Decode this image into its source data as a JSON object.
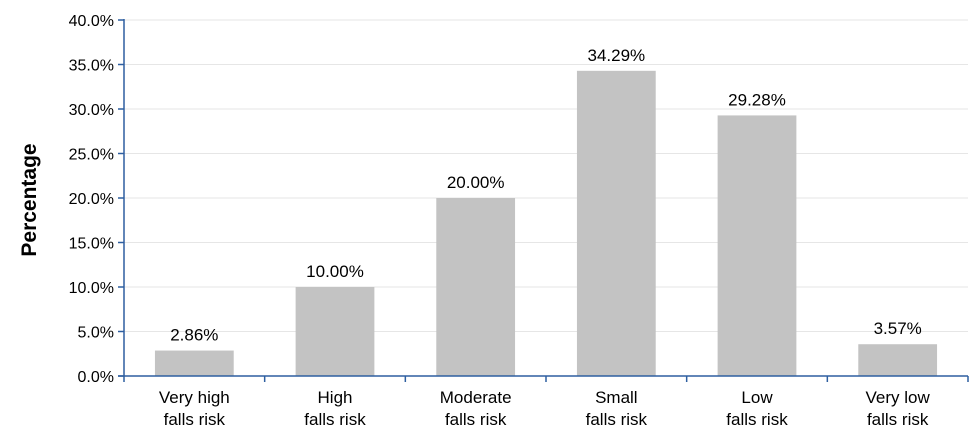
{
  "chart_data": {
    "type": "bar",
    "title": "",
    "xlabel": "",
    "ylabel": "Percentage",
    "categories": [
      [
        "Very high",
        "falls risk"
      ],
      [
        "High",
        "falls risk"
      ],
      [
        "Moderate",
        "falls risk"
      ],
      [
        "Small",
        "falls risk"
      ],
      [
        "Low",
        "falls risk"
      ],
      [
        "Very low",
        "falls risk"
      ]
    ],
    "values": [
      2.86,
      10.0,
      20.0,
      34.29,
      29.28,
      3.57
    ],
    "data_labels": [
      "2.86%",
      "10.00%",
      "20.00%",
      "34.29%",
      "29.28%",
      "3.57%"
    ],
    "ylim": [
      0,
      40
    ],
    "yticks": [
      0,
      5,
      10,
      15,
      20,
      25,
      30,
      35,
      40
    ],
    "ytick_labels": [
      "0.0%",
      "5.0%",
      "10.0%",
      "15.0%",
      "20.0%",
      "25.0%",
      "30.0%",
      "35.0%",
      "40.0%"
    ],
    "grid": true,
    "legend": "none",
    "colors": {
      "bar": "#c3c3c3",
      "axis": "#2e5fa0",
      "grid": "#e6e6e6"
    }
  }
}
